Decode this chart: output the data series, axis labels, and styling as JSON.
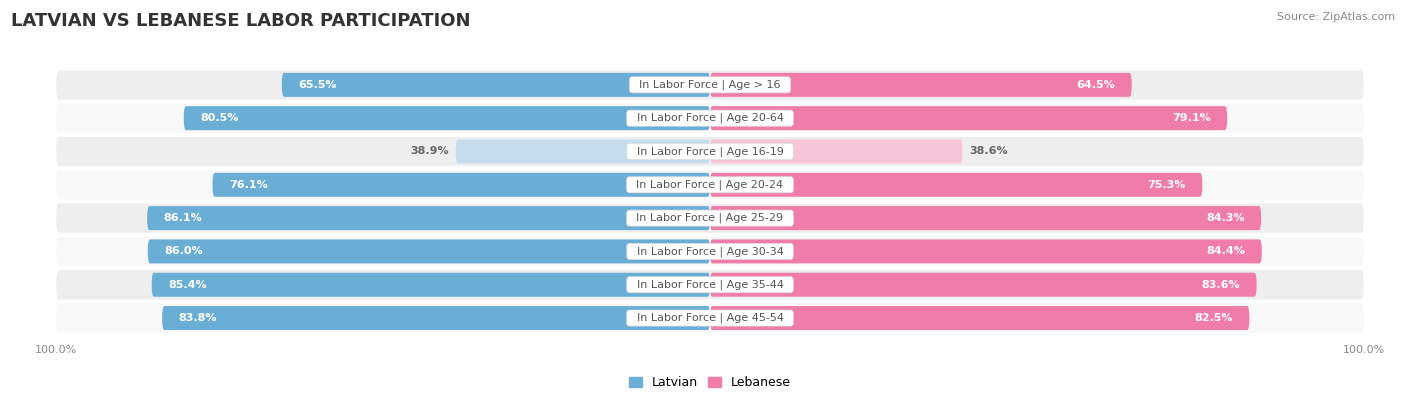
{
  "title": "LATVIAN VS LEBANESE LABOR PARTICIPATION",
  "source": "Source: ZipAtlas.com",
  "categories": [
    "In Labor Force | Age > 16",
    "In Labor Force | Age 20-64",
    "In Labor Force | Age 16-19",
    "In Labor Force | Age 20-24",
    "In Labor Force | Age 25-29",
    "In Labor Force | Age 30-34",
    "In Labor Force | Age 35-44",
    "In Labor Force | Age 45-54"
  ],
  "latvian_values": [
    65.5,
    80.5,
    38.9,
    76.1,
    86.1,
    86.0,
    85.4,
    83.8
  ],
  "lebanese_values": [
    64.5,
    79.1,
    38.6,
    75.3,
    84.3,
    84.4,
    83.6,
    82.5
  ],
  "latvian_color": "#6aaed6",
  "lebanese_color": "#f07caa",
  "latvian_light_color": "#c5dcef",
  "lebanese_light_color": "#f7c5d8",
  "row_bg_odd": "#eeeeee",
  "row_bg_even": "#f8f8f8",
  "title_fontsize": 13,
  "label_fontsize": 8,
  "value_fontsize": 8,
  "axis_label_fontsize": 8,
  "legend_fontsize": 9,
  "max_value": 100.0,
  "background_color": "#ffffff",
  "title_color": "#333333",
  "source_color": "#888888",
  "label_color": "#555555",
  "value_color_white": "#ffffff",
  "value_color_dark": "#666666",
  "white_threshold": 50
}
